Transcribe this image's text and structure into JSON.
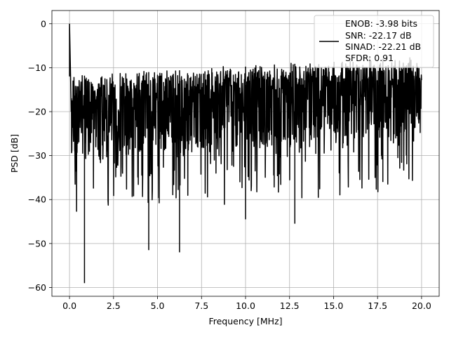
{
  "chart_data": {
    "type": "line",
    "title": "",
    "xlabel": "Frequency [MHz]",
    "ylabel": "PSD [dB]",
    "xlim": [
      -1.0,
      21.0
    ],
    "ylim": [
      -62.0,
      3.0
    ],
    "x_ticks": [
      0.0,
      2.5,
      5.0,
      7.5,
      10.0,
      12.5,
      15.0,
      17.5,
      20.0
    ],
    "x_tick_labels": [
      "0.0",
      "2.5",
      "5.0",
      "7.5",
      "10.0",
      "12.5",
      "15.0",
      "17.5",
      "20.0"
    ],
    "y_ticks": [
      0,
      -10,
      -20,
      -30,
      -40,
      -50,
      -60
    ],
    "y_tick_labels": [
      "0",
      "−10",
      "−20",
      "−30",
      "−40",
      "−50",
      "−60"
    ],
    "grid": true,
    "legend_position": "top-right",
    "legend_entries": [
      "ENOB: -3.98 bits",
      "SNR: -22.17 dB",
      "SINAD: -22.21 dB",
      "SFDR: 0.91"
    ],
    "line_color": "#000000",
    "series": [
      {
        "x_start": 0.0,
        "x_end": 20.0,
        "points": 1500,
        "noise_floor_db": -22.0,
        "peak_db": 0.0,
        "notable_points": [
          {
            "x": 0.0,
            "y": 0.0
          },
          {
            "x": 0.85,
            "y": -59.0
          },
          {
            "x": 4.5,
            "y": -51.5
          },
          {
            "x": 6.25,
            "y": -52.0
          },
          {
            "x": 10.0,
            "y": -44.5
          },
          {
            "x": 12.8,
            "y": -45.5
          },
          {
            "x": 17.8,
            "y": -36.0
          }
        ]
      }
    ]
  }
}
